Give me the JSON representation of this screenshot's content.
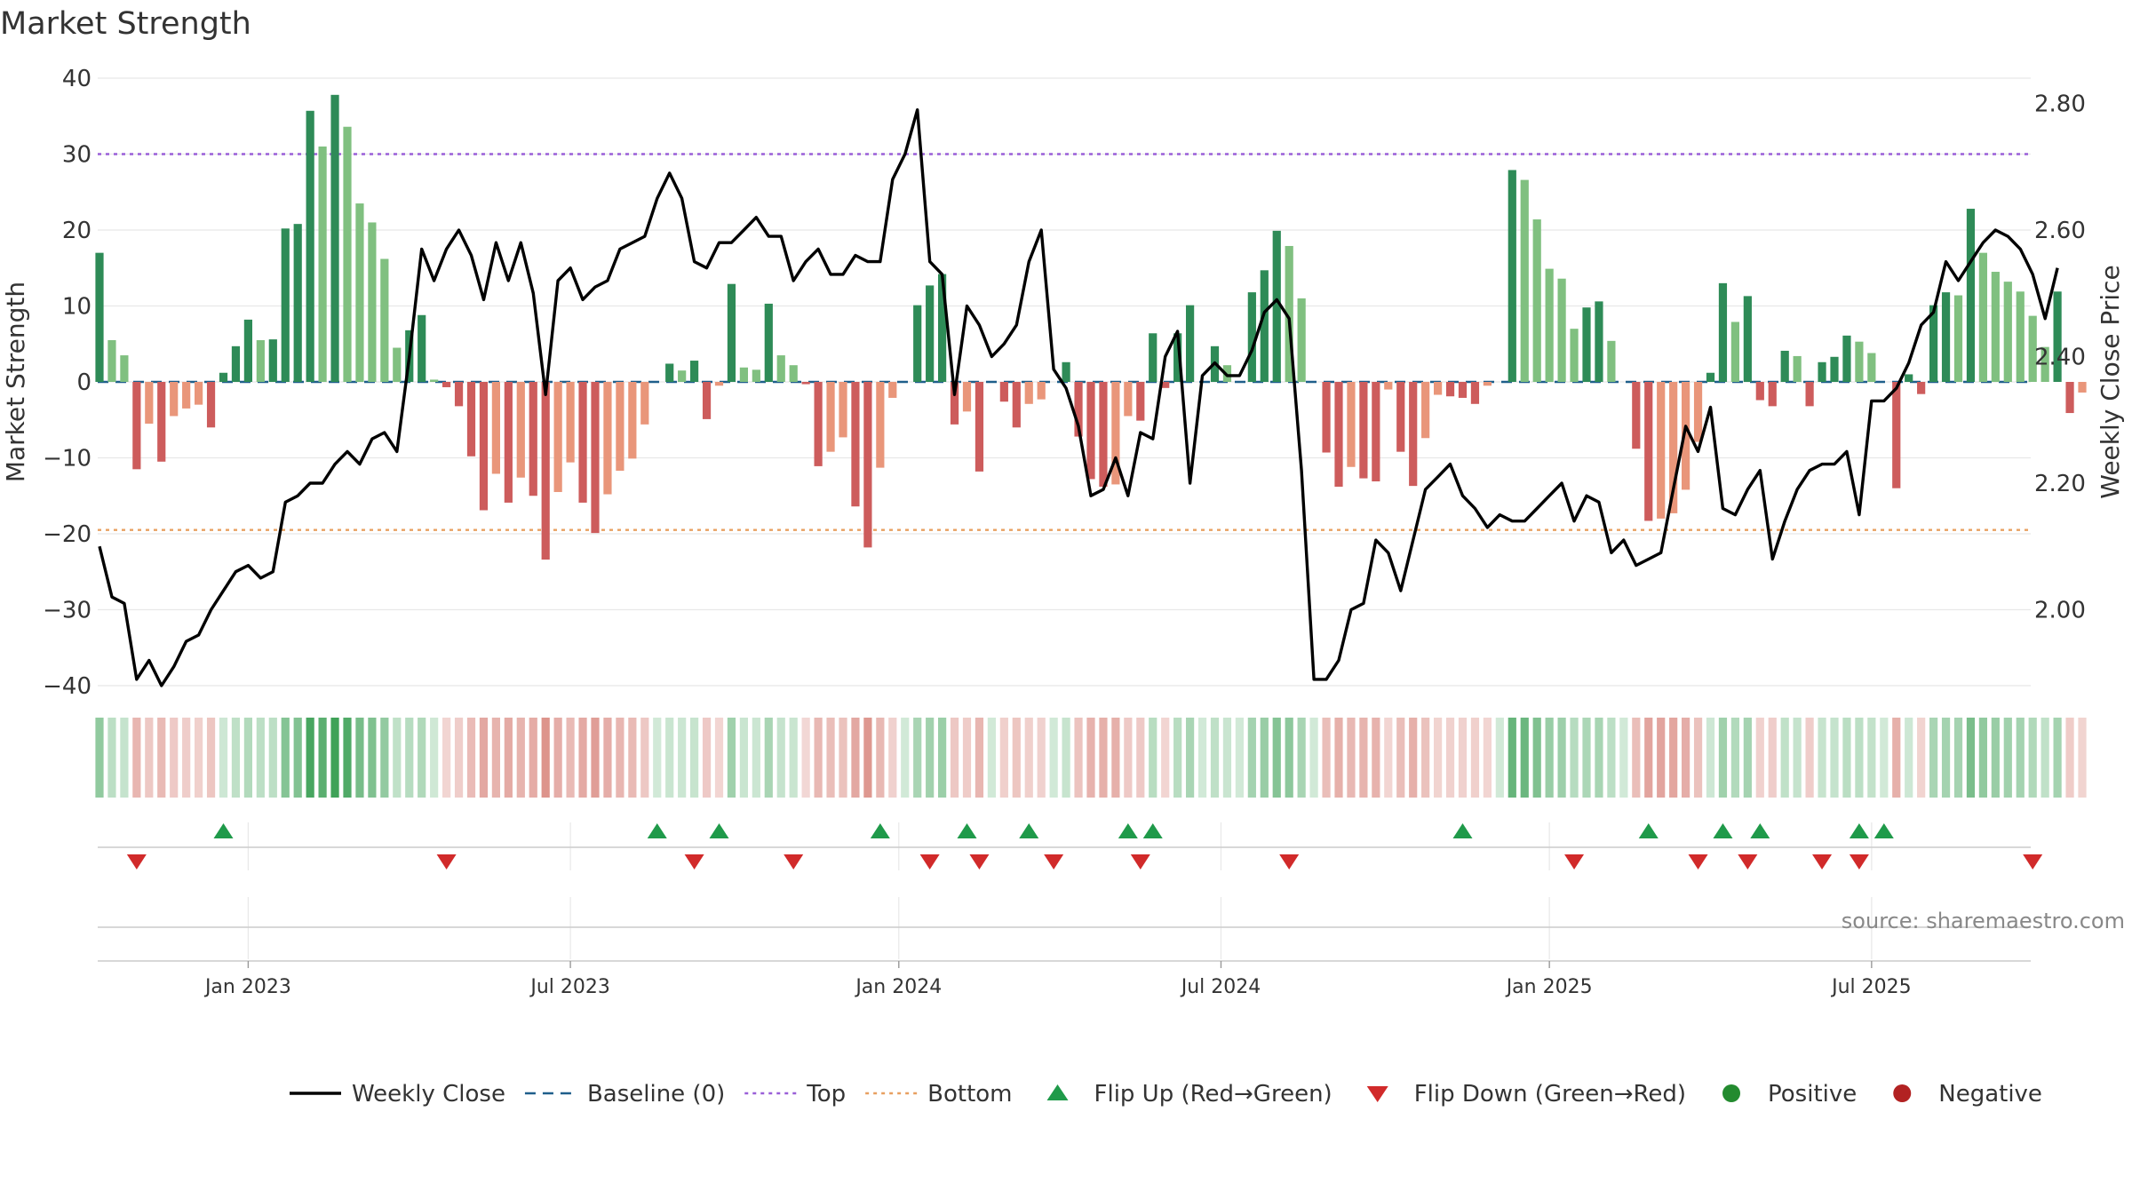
{
  "chart_data": {
    "type": "bar",
    "title": "Market Strength",
    "ylabel_left": "Market Strength",
    "ylabel_right": "Weekly Close Price",
    "xlabel": "",
    "ylim_left": [
      -40,
      40
    ],
    "ylim_right": [
      1.88,
      2.84
    ],
    "yticks_left": [
      40,
      30,
      20,
      10,
      0,
      -10,
      -20,
      -30,
      -40
    ],
    "yticks_left_labels": [
      "40",
      "30",
      "20",
      "10",
      "0",
      "−10",
      "−20",
      "−30",
      "−40"
    ],
    "yticks_right": [
      2.8,
      2.6,
      2.4,
      2.2,
      2.0
    ],
    "yticks_right_labels": [
      "2.80",
      "2.60",
      "2.40",
      "2.20",
      "2.00"
    ],
    "x_start": "2022-10-10",
    "week_count": 157,
    "xticks": [
      {
        "label": "Jan 2023",
        "week": 12
      },
      {
        "label": "Jul 2023",
        "week": 38
      },
      {
        "label": "Jan 2024",
        "week": 64.5
      },
      {
        "label": "Jul 2024",
        "week": 90.5
      },
      {
        "label": "Jan 2025",
        "week": 117
      },
      {
        "label": "Jul 2025",
        "week": 143
      }
    ],
    "top_line": 30,
    "bottom_line": -19.5,
    "baseline": 0,
    "strength": [
      17,
      5.5,
      3.5,
      -11.5,
      -5.5,
      -10.5,
      -4.5,
      -3.5,
      -3,
      -6,
      1.2,
      4.7,
      8.2,
      5.5,
      5.6,
      20.2,
      20.8,
      35.7,
      31,
      37.8,
      33.6,
      23.5,
      21,
      16.2,
      4.5,
      6.8,
      8.8,
      0.3,
      -0.7,
      -3.2,
      -9.8,
      -16.9,
      -12.1,
      -15.9,
      -12.6,
      -15,
      -23.4,
      -14.5,
      -10.6,
      -15.9,
      -19.9,
      -14.8,
      -11.7,
      -10.1,
      -5.6,
      0,
      2.4,
      1.5,
      2.8,
      -4.9,
      -0.5,
      12.9,
      1.9,
      1.6,
      10.3,
      3.5,
      2.2,
      -0.3,
      -11.1,
      -9.2,
      -7.3,
      -16.4,
      -21.8,
      -11.3,
      -2.1,
      0,
      10.1,
      12.7,
      14.2,
      -5.6,
      -3.9,
      -11.8,
      0,
      -2.6,
      -6,
      -2.9,
      -2.3,
      0,
      2.6,
      -7.2,
      -12.8,
      -13.8,
      -13.5,
      -4.5,
      -5.1,
      6.4,
      -0.8,
      6.4,
      10.1,
      0,
      4.7,
      2.2,
      0,
      11.8,
      14.7,
      19.9,
      17.9,
      11,
      0,
      -9.3,
      -13.8,
      -11.2,
      -12.7,
      -13.1,
      -1,
      -9.2,
      -13.7,
      -7.4,
      -1.7,
      -1.9,
      -2.1,
      -2.9,
      -0.5,
      0,
      27.9,
      26.6,
      21.4,
      14.9,
      13.6,
      7,
      9.8,
      10.6,
      5.4,
      0,
      -8.8,
      -18.3,
      -18,
      -17.3,
      -14.2,
      -7.9,
      1.2,
      13,
      7.9,
      11.3,
      -2.4,
      -3.2,
      4.1,
      3.4,
      -3.2,
      2.6,
      3.3,
      6.1,
      5.3,
      3.8,
      0,
      -14,
      1,
      -1.6,
      10.1,
      11.8,
      11.4,
      22.8,
      17,
      14.5,
      13.2,
      11.9,
      8.7,
      4.6,
      11.9,
      -4.1,
      -1.4
    ],
    "close": [
      2.1,
      2.02,
      2.01,
      1.89,
      1.92,
      1.88,
      1.91,
      1.95,
      1.96,
      2.0,
      2.03,
      2.06,
      2.07,
      2.05,
      2.06,
      2.17,
      2.18,
      2.2,
      2.2,
      2.23,
      2.25,
      2.23,
      2.27,
      2.28,
      2.25,
      2.4,
      2.57,
      2.52,
      2.57,
      2.6,
      2.56,
      2.49,
      2.58,
      2.52,
      2.58,
      2.5,
      2.34,
      2.52,
      2.54,
      2.49,
      2.51,
      2.52,
      2.57,
      2.58,
      2.59,
      2.65,
      2.69,
      2.65,
      2.55,
      2.54,
      2.58,
      2.58,
      2.6,
      2.62,
      2.59,
      2.59,
      2.52,
      2.55,
      2.57,
      2.53,
      2.53,
      2.56,
      2.55,
      2.55,
      2.68,
      2.72,
      2.79,
      2.55,
      2.53,
      2.34,
      2.48,
      2.45,
      2.4,
      2.42,
      2.45,
      2.55,
      2.6,
      2.38,
      2.35,
      2.29,
      2.18,
      2.19,
      2.24,
      2.18,
      2.28,
      2.27,
      2.4,
      2.44,
      2.2,
      2.37,
      2.39,
      2.37,
      2.37,
      2.41,
      2.47,
      2.49,
      2.46,
      2.22,
      1.89,
      1.89,
      1.92,
      2.0,
      2.01,
      2.11,
      2.09,
      2.03,
      2.11,
      2.19,
      2.21,
      2.23,
      2.18,
      2.16,
      2.13,
      2.15,
      2.14,
      2.14,
      2.16,
      2.18,
      2.2,
      2.14,
      2.18,
      2.17,
      2.09,
      2.11,
      2.07,
      2.08,
      2.09,
      2.19,
      2.29,
      2.25,
      2.32,
      2.16,
      2.15,
      2.19,
      2.22,
      2.08,
      2.14,
      2.19,
      2.22,
      2.23,
      2.23,
      2.25,
      2.15,
      2.33,
      2.33,
      2.35,
      2.39,
      2.45,
      2.47,
      2.55,
      2.52,
      2.55,
      2.58,
      2.6,
      2.59,
      2.57,
      2.53,
      2.46,
      2.54
    ],
    "heat_strip_label": "",
    "flip_up_weeks": [
      10,
      45,
      50,
      63,
      70,
      75,
      83,
      85,
      110,
      125,
      131,
      134,
      142,
      144
    ],
    "flip_down_weeks": [
      3,
      28,
      48,
      56,
      67,
      71,
      77,
      84,
      96,
      119,
      129,
      133,
      139,
      142,
      156
    ],
    "legend": [
      {
        "label": "Weekly Close",
        "symbol": "line",
        "color": "#000000"
      },
      {
        "label": "Baseline (0)",
        "symbol": "dash",
        "color": "#1f5f8b"
      },
      {
        "label": "Top",
        "symbol": "dot",
        "color": "#9a5fd8"
      },
      {
        "label": "Bottom",
        "symbol": "dot",
        "color": "#e8a061"
      },
      {
        "label": "Flip Up (Red→Green)",
        "symbol": "tri-up",
        "color": "#1f9a4a"
      },
      {
        "label": "Flip Down (Green→Red)",
        "symbol": "tri-down",
        "color": "#d12a2a"
      },
      {
        "label": "Positive",
        "symbol": "circle",
        "color": "#238b2f"
      },
      {
        "label": "Negative",
        "symbol": "circle",
        "color": "#b22222"
      }
    ],
    "legend_position": "bottom-center",
    "annotation": "source: sharemaestro.com",
    "colors": {
      "pos_strong": "#2e8b57",
      "pos_weak": "#80c080",
      "neg_strong": "#cd5c5c",
      "neg_weak": "#e9967a",
      "close_line": "#000000",
      "grid": "#e8e8e8"
    }
  }
}
